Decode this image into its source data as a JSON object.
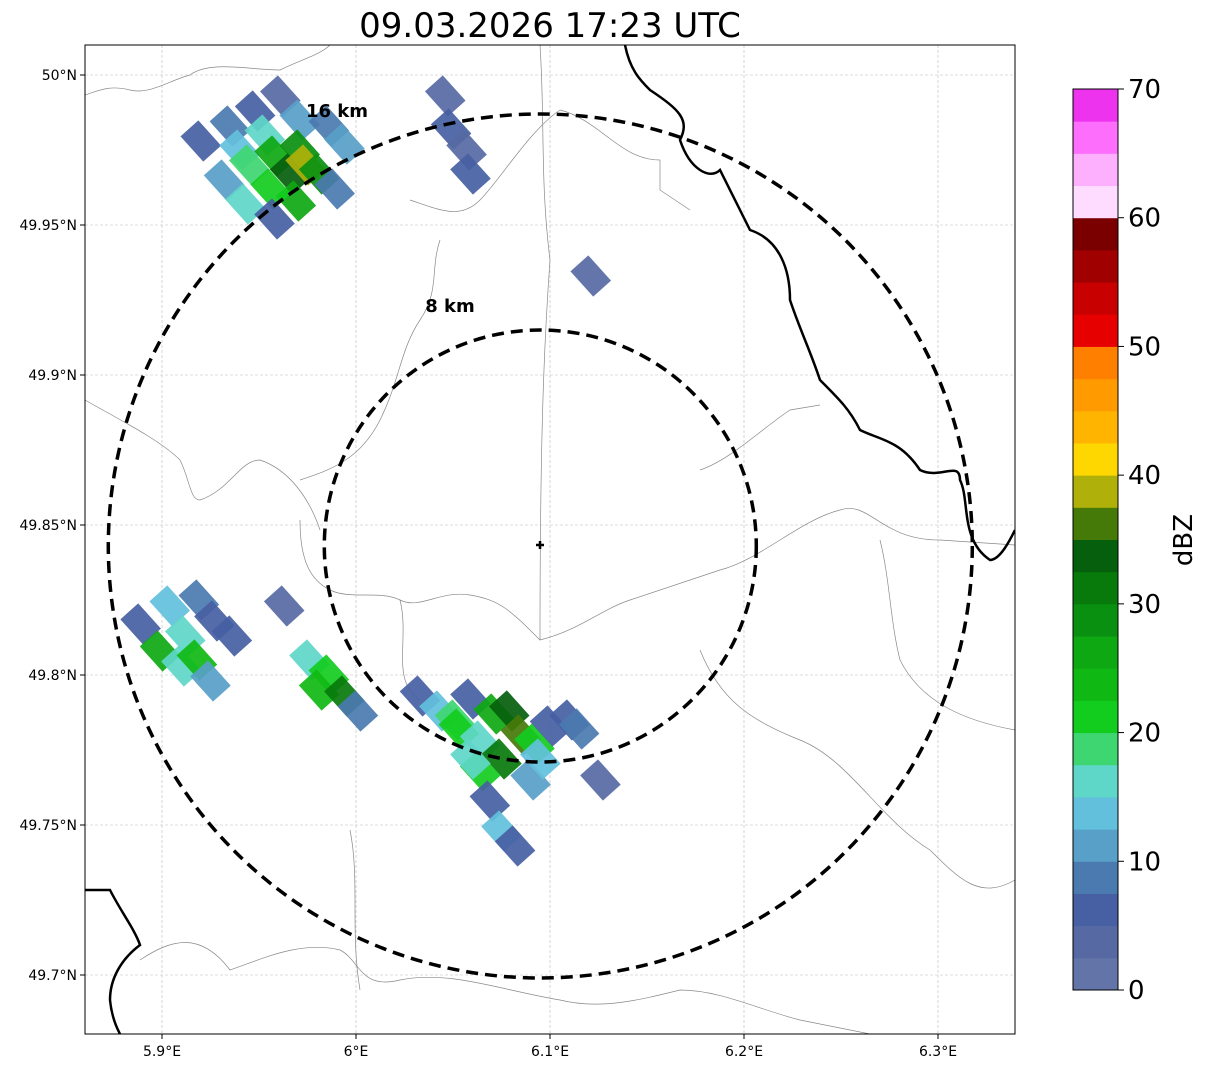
{
  "chart_data": {
    "type": "heatmap",
    "title": "09.03.2026 17:23 UTC",
    "xlim": [
      5.86,
      6.34
    ],
    "ylim": [
      49.68,
      50.01
    ],
    "x_ticks": [
      {
        "v": 5.9,
        "label": "5.9°E"
      },
      {
        "v": 6.0,
        "label": "6°E"
      },
      {
        "v": 6.1,
        "label": "6.1°E"
      },
      {
        "v": 6.2,
        "label": "6.2°E"
      },
      {
        "v": 6.3,
        "label": "6.3°E"
      }
    ],
    "y_ticks": [
      {
        "v": 50.0,
        "label": "50°N"
      },
      {
        "v": 49.95,
        "label": "49.95°N"
      },
      {
        "v": 49.9,
        "label": "49.9°N"
      },
      {
        "v": 49.85,
        "label": "49.85°N"
      },
      {
        "v": 49.8,
        "label": "49.8°N"
      },
      {
        "v": 49.75,
        "label": "49.75°N"
      },
      {
        "v": 49.7,
        "label": "49.7°N"
      }
    ],
    "grid": true,
    "radar_center": [
      6.095,
      49.843
    ],
    "range_rings": [
      {
        "km": 8,
        "label": "8 km"
      },
      {
        "km": 16,
        "label": "16 km"
      }
    ],
    "colorbar": {
      "label": "dBZ",
      "min": 0,
      "max": 70,
      "step": 2.5,
      "ticks": [
        "0",
        "10",
        "20",
        "30",
        "40",
        "50",
        "60",
        "70"
      ],
      "colors": [
        "#6374a8",
        "#5669a3",
        "#4660a3",
        "#4a7ab0",
        "#58a0c8",
        "#62c0dc",
        "#5ed6c8",
        "#3ed670",
        "#12cc1e",
        "#10b814",
        "#0ea812",
        "#0a9010",
        "#087a0c",
        "#055f0c",
        "#457a08",
        "#afb10a",
        "#ffd700",
        "#ffb400",
        "#ff9a00",
        "#ff7f00",
        "#e60000",
        "#c80000",
        "#a00000",
        "#7a0000",
        "#fddcff",
        "#fdb0fd",
        "#fd6efd",
        "#ee33ee"
      ]
    },
    "cells": [
      [
        5.92,
        49.978,
        5
      ],
      [
        5.935,
        49.983,
        8
      ],
      [
        5.948,
        49.988,
        5
      ],
      [
        5.961,
        49.993,
        3
      ],
      [
        5.94,
        49.975,
        13
      ],
      [
        5.953,
        49.98,
        15
      ],
      [
        5.971,
        49.985,
        10
      ],
      [
        5.986,
        49.983,
        8
      ],
      [
        5.932,
        49.965,
        12
      ],
      [
        5.945,
        49.97,
        18
      ],
      [
        5.958,
        49.973,
        25
      ],
      [
        5.971,
        49.975,
        28
      ],
      [
        5.966,
        49.967,
        33
      ],
      [
        5.974,
        49.97,
        38
      ],
      [
        5.981,
        49.967,
        28
      ],
      [
        5.969,
        49.958,
        27
      ],
      [
        5.956,
        49.962,
        22
      ],
      [
        5.943,
        49.957,
        15
      ],
      [
        5.989,
        49.962,
        8
      ],
      [
        5.994,
        49.977,
        10
      ],
      [
        5.958,
        49.952,
        5
      ],
      [
        6.046,
        49.993,
        4
      ],
      [
        6.049,
        49.982,
        5
      ],
      [
        6.057,
        49.975,
        3
      ],
      [
        6.059,
        49.967,
        5
      ],
      [
        6.121,
        49.933,
        4
      ],
      [
        5.889,
        49.817,
        5
      ],
      [
        5.904,
        49.823,
        13
      ],
      [
        5.919,
        49.825,
        8
      ],
      [
        5.927,
        49.818,
        6
      ],
      [
        5.936,
        49.813,
        5
      ],
      [
        5.912,
        49.813,
        17
      ],
      [
        5.899,
        49.808,
        25
      ],
      [
        5.91,
        49.803,
        17
      ],
      [
        5.918,
        49.805,
        24
      ],
      [
        5.925,
        49.798,
        12
      ],
      [
        5.963,
        49.823,
        4
      ],
      [
        5.976,
        49.805,
        17
      ],
      [
        5.986,
        49.8,
        22
      ],
      [
        5.981,
        49.795,
        24
      ],
      [
        5.994,
        49.793,
        30
      ],
      [
        6.001,
        49.788,
        8
      ],
      [
        6.033,
        49.793,
        7
      ],
      [
        6.043,
        49.788,
        13
      ],
      [
        6.059,
        49.792,
        7
      ],
      [
        6.051,
        49.785,
        18
      ],
      [
        6.053,
        49.782,
        22
      ],
      [
        6.064,
        49.778,
        17
      ],
      [
        6.071,
        49.787,
        25
      ],
      [
        6.079,
        49.788,
        33
      ],
      [
        6.085,
        49.78,
        35
      ],
      [
        6.075,
        49.772,
        30
      ],
      [
        6.092,
        49.777,
        22
      ],
      [
        6.1,
        49.783,
        7
      ],
      [
        6.11,
        49.785,
        5
      ],
      [
        6.115,
        49.782,
        8
      ],
      [
        6.126,
        49.765,
        4
      ],
      [
        6.09,
        49.765,
        10
      ],
      [
        6.095,
        49.772,
        14
      ],
      [
        6.064,
        49.768,
        20
      ],
      [
        6.059,
        49.772,
        15
      ],
      [
        6.069,
        49.758,
        6
      ],
      [
        6.075,
        49.748,
        13
      ],
      [
        6.082,
        49.743,
        5
      ]
    ]
  }
}
